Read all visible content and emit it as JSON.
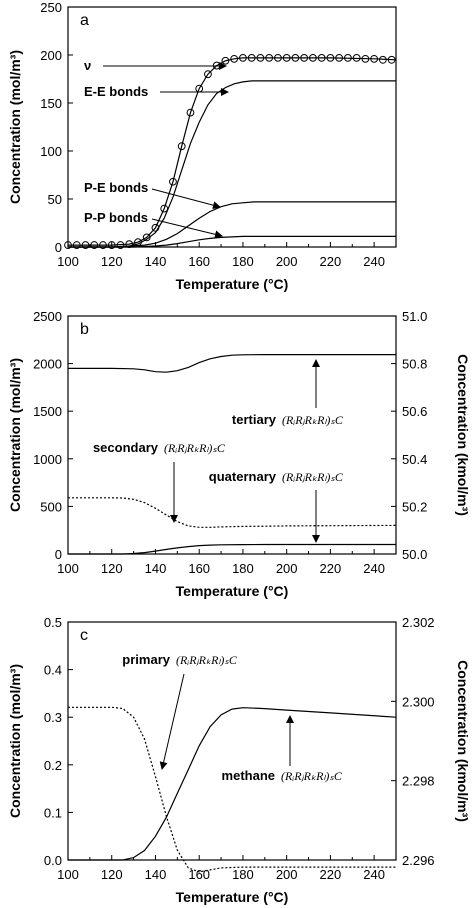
{
  "chart_data": [
    {
      "panel": "a",
      "type": "line",
      "xlabel": "Temperature (°C)",
      "ylabel": "Concentration (mol/m³)",
      "xlim": [
        100,
        250
      ],
      "ylim": [
        0,
        250
      ],
      "xticks": [
        100,
        120,
        140,
        160,
        180,
        200,
        220,
        240
      ],
      "yticks": [
        0,
        50,
        100,
        150,
        200,
        250
      ],
      "series": [
        {
          "name": "ν",
          "style": "circles",
          "x": [
            100,
            104,
            108,
            112,
            116,
            120,
            124,
            128,
            132,
            136,
            140,
            144,
            148,
            152,
            156,
            160,
            164,
            168,
            172,
            176,
            180,
            184,
            188,
            192,
            196,
            200,
            204,
            208,
            212,
            216,
            220,
            224,
            228,
            232,
            236,
            240,
            244,
            248
          ],
          "y": [
            2,
            2,
            2,
            2,
            2,
            2,
            2,
            3,
            5,
            10,
            20,
            40,
            68,
            105,
            140,
            165,
            180,
            189,
            194,
            196,
            197,
            197,
            197,
            197,
            197,
            197,
            197,
            197,
            197,
            197,
            197,
            197,
            197,
            197,
            196,
            196,
            195,
            195
          ]
        },
        {
          "name": "ν",
          "style": "solid",
          "x": [
            100,
            120,
            128,
            132,
            136,
            140,
            144,
            148,
            152,
            156,
            160,
            164,
            168,
            172,
            176,
            180,
            184,
            190,
            200,
            220,
            240,
            250
          ],
          "y": [
            2,
            2,
            3,
            5,
            10,
            20,
            40,
            68,
            105,
            140,
            165,
            180,
            189,
            194,
            196,
            197,
            197,
            197,
            197,
            197,
            196,
            195
          ]
        },
        {
          "name": "E-E bonds",
          "style": "solid",
          "x": [
            100,
            120,
            128,
            132,
            136,
            140,
            144,
            148,
            152,
            156,
            160,
            164,
            168,
            172,
            176,
            180,
            184,
            190,
            200,
            250
          ],
          "y": [
            0,
            0,
            1,
            3,
            8,
            15,
            30,
            52,
            80,
            108,
            130,
            148,
            160,
            166,
            170,
            172,
            173,
            173,
            173,
            173
          ]
        },
        {
          "name": "P-E bonds",
          "style": "solid",
          "x": [
            100,
            125,
            130,
            135,
            140,
            145,
            150,
            155,
            160,
            165,
            170,
            175,
            180,
            185,
            190,
            200,
            250
          ],
          "y": [
            0,
            0,
            1,
            2,
            4,
            8,
            14,
            22,
            30,
            37,
            42,
            45,
            46,
            47,
            47,
            47,
            47
          ]
        },
        {
          "name": "P-P bonds",
          "style": "solid",
          "x": [
            100,
            130,
            135,
            140,
            145,
            150,
            155,
            160,
            165,
            170,
            175,
            180,
            190,
            200,
            250
          ],
          "y": [
            0,
            0,
            0.5,
            1,
            2,
            3.5,
            5.5,
            7.5,
            9,
            10,
            10.5,
            11,
            11,
            11,
            11
          ]
        }
      ],
      "annotations": [
        {
          "text": "ν",
          "x": 100.8,
          "y": 205,
          "tx": 169,
          "ty": 205
        },
        {
          "text": "E-E bonds",
          "x": 100.8,
          "y": 186,
          "tx": 171,
          "ty": 186
        },
        {
          "text": "P-E bonds",
          "x": 112,
          "y": 60,
          "tx": 176,
          "ty": 47
        },
        {
          "text": "P-P bonds",
          "x": 112,
          "y": 30,
          "tx": 175,
          "ty": 12
        }
      ],
      "panel_letter": "a"
    },
    {
      "panel": "b",
      "type": "line",
      "xlabel": "Temperature (°C)",
      "ylabel": "Concentration (mol/m³)",
      "ylabel_right": "Concentration (kmol/m³)",
      "xlim": [
        100,
        250
      ],
      "ylim": [
        0,
        2500
      ],
      "ylim_right": [
        50.0,
        51.0
      ],
      "xticks": [
        100,
        120,
        140,
        160,
        180,
        200,
        220,
        240
      ],
      "yticks": [
        0,
        500,
        1000,
        1500,
        2000,
        2500
      ],
      "yticks_right": [
        "50.0",
        "50.2",
        "50.4",
        "50.6",
        "50.8",
        "51.0"
      ],
      "series": [
        {
          "name": "tertiary",
          "style": "solid",
          "axis": "left",
          "x": [
            100,
            120,
            130,
            135,
            140,
            145,
            150,
            155,
            160,
            165,
            170,
            175,
            180,
            190,
            200,
            250
          ],
          "y": [
            1950,
            1950,
            1945,
            1935,
            1915,
            1910,
            1925,
            1960,
            2010,
            2050,
            2075,
            2088,
            2092,
            2095,
            2095,
            2095
          ]
        },
        {
          "name": "secondary",
          "style": "dotted",
          "axis": "left",
          "x": [
            100,
            120,
            125,
            130,
            135,
            140,
            145,
            150,
            155,
            160,
            165,
            170,
            180,
            190,
            200,
            250
          ],
          "y": [
            590,
            590,
            588,
            575,
            540,
            480,
            410,
            340,
            295,
            280,
            280,
            285,
            290,
            292,
            295,
            300
          ]
        },
        {
          "name": "quaternary",
          "style": "solid",
          "axis": "left",
          "x": [
            100,
            125,
            130,
            135,
            140,
            145,
            150,
            155,
            160,
            165,
            170,
            180,
            190,
            200,
            250
          ],
          "y": [
            0,
            0,
            5,
            15,
            30,
            48,
            64,
            78,
            88,
            94,
            97,
            99,
            100,
            100,
            100
          ]
        }
      ],
      "annotations": [
        {
          "text": "tertiary",
          "formula": "(RᵢRⱼRₖRₗ)ₛC"
        },
        {
          "text": "secondary",
          "formula": "(RᵢRⱼRₖRₗ)ₛC"
        },
        {
          "text": "quaternary",
          "formula": "(RᵢRⱼRₖRₗ)ₛC"
        }
      ],
      "panel_letter": "b"
    },
    {
      "panel": "c",
      "type": "line",
      "xlabel": "Temperature (°C)",
      "ylabel": "Concentration (mol/m³)",
      "ylabel_right": "Concentration (kmol/m³)",
      "xlim": [
        100,
        250
      ],
      "ylim": [
        0.0,
        0.5
      ],
      "ylim_right": [
        2.296,
        2.302
      ],
      "xticks": [
        100,
        120,
        140,
        160,
        180,
        200,
        220,
        240
      ],
      "yticks": [
        "0.0",
        "0.1",
        "0.2",
        "0.3",
        "0.4",
        "0.5"
      ],
      "yticks_right": [
        "2.296",
        "2.298",
        "2.300",
        "2.302"
      ],
      "series": [
        {
          "name": "primary",
          "style": "dotted",
          "axis": "right",
          "x": [
            100,
            120,
            125,
            130,
            135,
            140,
            145,
            150,
            155,
            160,
            165,
            170,
            180,
            200,
            250
          ],
          "y": [
            2.29985,
            2.29985,
            2.29982,
            2.2996,
            2.29905,
            2.2981,
            2.2971,
            2.29625,
            2.2958,
            2.2957,
            2.29575,
            2.2958,
            2.29582,
            2.29582,
            2.29582
          ]
        },
        {
          "name": "methane",
          "style": "solid",
          "axis": "left",
          "x": [
            100,
            125,
            130,
            135,
            140,
            145,
            150,
            155,
            160,
            165,
            170,
            175,
            180,
            190,
            200,
            220,
            250
          ],
          "y": [
            0,
            0,
            0.005,
            0.02,
            0.05,
            0.09,
            0.14,
            0.19,
            0.24,
            0.28,
            0.305,
            0.317,
            0.32,
            0.318,
            0.315,
            0.309,
            0.3
          ]
        }
      ],
      "annotations": [
        {
          "text": "primary",
          "formula": "(RᵢRⱼRₖRₗ)ₛC"
        },
        {
          "text": "methane",
          "formula": "(RᵢRⱼRₖRₗ)ₛC"
        }
      ],
      "panel_letter": "c"
    }
  ]
}
